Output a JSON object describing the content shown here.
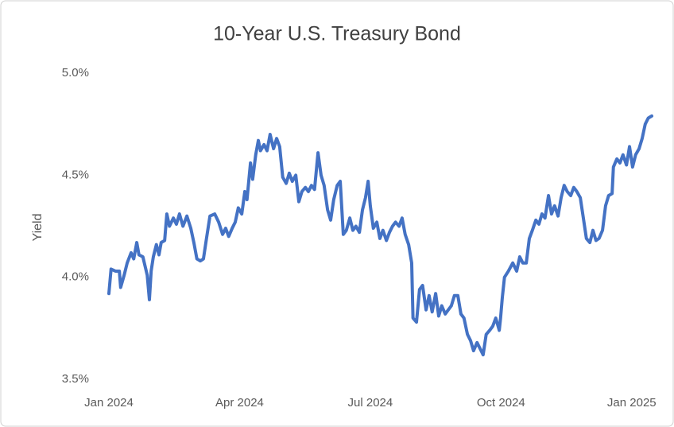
{
  "chart_data": {
    "type": "line",
    "title": "10-Year U.S. Treasury Bond",
    "y_label": "Yield",
    "color": "#4472c4",
    "grid": false,
    "x": [
      0,
      0.05,
      0.15,
      0.24,
      0.27,
      0.35,
      0.42,
      0.51,
      0.57,
      0.64,
      0.69,
      0.78,
      0.88,
      0.93,
      0.97,
      1.02,
      1.09,
      1.15,
      1.2,
      1.28,
      1.33,
      1.39,
      1.48,
      1.55,
      1.62,
      1.7,
      1.79,
      1.88,
      1.95,
      2.02,
      2.1,
      2.17,
      2.24,
      2.32,
      2.43,
      2.52,
      2.61,
      2.68,
      2.75,
      2.83,
      2.9,
      2.97,
      3.05,
      3.12,
      3.17,
      3.25,
      3.3,
      3.37,
      3.43,
      3.48,
      3.56,
      3.63,
      3.7,
      3.78,
      3.85,
      3.92,
      3.99,
      4.07,
      4.14,
      4.21,
      4.29,
      4.36,
      4.43,
      4.51,
      4.58,
      4.65,
      4.72,
      4.8,
      4.87,
      4.94,
      5.02,
      5.09,
      5.16,
      5.24,
      5.31,
      5.38,
      5.45,
      5.53,
      5.6,
      5.67,
      5.75,
      5.82,
      5.89,
      5.95,
      6.0,
      6.07,
      6.15,
      6.22,
      6.29,
      6.37,
      6.44,
      6.51,
      6.58,
      6.66,
      6.73,
      6.8,
      6.88,
      6.95,
      6.98,
      7.06,
      7.13,
      7.2,
      7.28,
      7.35,
      7.42,
      7.5,
      7.57,
      7.64,
      7.72,
      7.79,
      7.86,
      7.93,
      8.01,
      8.08,
      8.15,
      8.23,
      8.3,
      8.37,
      8.45,
      8.52,
      8.59,
      8.66,
      8.74,
      8.81,
      8.88,
      8.96,
      8.99,
      9.03,
      9.08,
      9.17,
      9.27,
      9.36,
      9.43,
      9.5,
      9.58,
      9.65,
      9.72,
      9.8,
      9.87,
      9.94,
      10.01,
      10.09,
      10.16,
      10.23,
      10.31,
      10.38,
      10.45,
      10.52,
      10.6,
      10.67,
      10.74,
      10.82,
      10.89,
      10.96,
      11.04,
      11.11,
      11.18,
      11.25,
      11.33,
      11.4,
      11.47,
      11.55,
      11.58,
      11.66,
      11.73,
      11.8,
      11.88,
      11.95,
      12.02,
      12.09,
      12.17,
      12.24,
      12.31,
      12.38,
      12.46
    ],
    "values": [
      3.92,
      4.04,
      4.03,
      4.03,
      3.95,
      4.01,
      4.07,
      4.12,
      4.09,
      4.17,
      4.11,
      4.1,
      4.01,
      3.89,
      4.03,
      4.1,
      4.16,
      4.11,
      4.17,
      4.18,
      4.31,
      4.25,
      4.29,
      4.26,
      4.31,
      4.25,
      4.3,
      4.24,
      4.17,
      4.09,
      4.08,
      4.09,
      4.19,
      4.3,
      4.31,
      4.27,
      4.21,
      4.24,
      4.2,
      4.24,
      4.27,
      4.34,
      4.31,
      4.42,
      4.38,
      4.56,
      4.48,
      4.6,
      4.67,
      4.62,
      4.65,
      4.62,
      4.7,
      4.63,
      4.68,
      4.64,
      4.49,
      4.46,
      4.51,
      4.47,
      4.5,
      4.37,
      4.42,
      4.44,
      4.42,
      4.45,
      4.43,
      4.61,
      4.5,
      4.45,
      4.33,
      4.28,
      4.38,
      4.45,
      4.47,
      4.21,
      4.23,
      4.29,
      4.23,
      4.25,
      4.22,
      4.33,
      4.39,
      4.47,
      4.35,
      4.24,
      4.27,
      4.19,
      4.23,
      4.18,
      4.22,
      4.25,
      4.27,
      4.25,
      4.29,
      4.21,
      4.16,
      4.07,
      3.8,
      3.78,
      3.94,
      3.96,
      3.84,
      3.91,
      3.83,
      3.92,
      3.81,
      3.86,
      3.82,
      3.84,
      3.86,
      3.91,
      3.91,
      3.82,
      3.8,
      3.72,
      3.69,
      3.64,
      3.68,
      3.65,
      3.62,
      3.72,
      3.74,
      3.76,
      3.8,
      3.74,
      3.8,
      3.9,
      4.0,
      4.03,
      4.07,
      4.03,
      4.1,
      4.07,
      4.07,
      4.19,
      4.23,
      4.28,
      4.26,
      4.31,
      4.29,
      4.4,
      4.31,
      4.35,
      4.3,
      4.39,
      4.45,
      4.42,
      4.4,
      4.44,
      4.42,
      4.39,
      4.29,
      4.19,
      4.17,
      4.23,
      4.18,
      4.19,
      4.23,
      4.35,
      4.4,
      4.41,
      4.54,
      4.58,
      4.56,
      4.6,
      4.55,
      4.64,
      4.54,
      4.6,
      4.63,
      4.68,
      4.75,
      4.78,
      4.79
    ],
    "xlim": [
      0,
      12.46
    ],
    "xticks": [
      {
        "value": 0,
        "label": "Jan 2024"
      },
      {
        "value": 3,
        "label": "Apr 2024"
      },
      {
        "value": 6,
        "label": "Jul 2024"
      },
      {
        "value": 9,
        "label": "Oct 2024"
      },
      {
        "value": 12,
        "label": "Jan 2025"
      }
    ],
    "ylim": [
      3.5,
      5.0
    ],
    "yticks": [
      {
        "value": 3.5,
        "label": "3.5%"
      },
      {
        "value": 4.0,
        "label": "4.0%"
      },
      {
        "value": 4.5,
        "label": "4.5%"
      },
      {
        "value": 5.0,
        "label": "5.0%"
      }
    ]
  }
}
